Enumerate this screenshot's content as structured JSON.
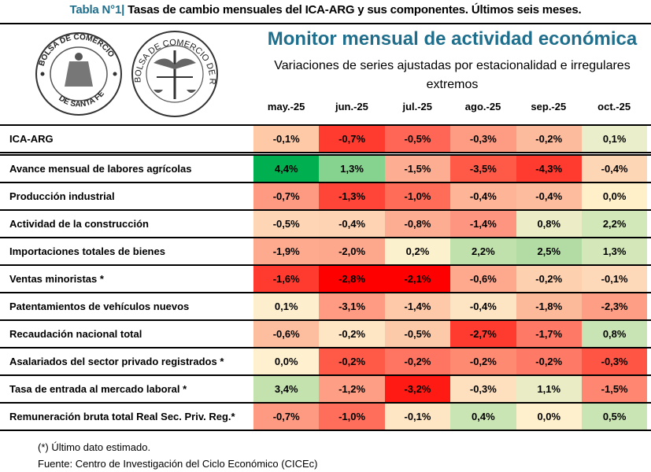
{
  "title": {
    "lead": "Tabla N°1|",
    "text": " Tasas de cambio mensuales del ICA-ARG y sus componentes. Últimos seis meses."
  },
  "header": {
    "monitor_title": "Monitor mensual de actividad económica",
    "subtitle": "Variaciones de series ajustadas por estacionalidad e irregulares extremos",
    "logos": [
      "BOLSA DE COMERCIO DE SANTA FE",
      "BOLSA DE COMERCIO DE ROSARIO"
    ]
  },
  "columns": [
    "may.-25",
    "jun.-25",
    "jul.-25",
    "ago.-25",
    "sep.-25",
    "oct.-25"
  ],
  "rows": [
    {
      "label": "ICA-ARG",
      "values": [
        "-0,1%",
        "-0,7%",
        "-0,5%",
        "-0,3%",
        "-0,2%",
        "0,1%"
      ],
      "colors": [
        "#fdc9a6",
        "#ff3b30",
        "#ff6655",
        "#fe9c83",
        "#fdbb9e",
        "#ebeecb"
      ]
    },
    {
      "label": "Avance mensual de labores agrícolas",
      "values": [
        "4,4%",
        "1,3%",
        "-1,5%",
        "-3,5%",
        "-4,3%",
        "-0,4%"
      ],
      "colors": [
        "#00b050",
        "#86d390",
        "#fdae92",
        "#ff5a48",
        "#ff3a2f",
        "#fdd6b6"
      ]
    },
    {
      "label": "Producción industrial",
      "values": [
        "-0,7%",
        "-1,3%",
        "-1,0%",
        "-0,4%",
        "-0,4%",
        "0,0%"
      ],
      "colors": [
        "#fe9a82",
        "#ff4538",
        "#ff6c58",
        "#feb496",
        "#fdbc9d",
        "#fff0c9"
      ]
    },
    {
      "label": "Actividad de la construcción",
      "values": [
        "-0,5%",
        "-0,4%",
        "-0,8%",
        "-1,4%",
        "0,8%",
        "2,2%"
      ],
      "colors": [
        "#fed5b5",
        "#fdd3b4",
        "#fdad92",
        "#fe9580",
        "#ecedc6",
        "#d2e8b9"
      ]
    },
    {
      "label": "Importaciones totales de bienes",
      "values": [
        "-1,9%",
        "-2,0%",
        "0,2%",
        "2,2%",
        "2,5%",
        "1,3%"
      ],
      "colors": [
        "#fdaa8f",
        "#fda78d",
        "#fcf1cd",
        "#c0e1ab",
        "#b2dca4",
        "#d4e7b9"
      ]
    },
    {
      "label": "Ventas minoristas *",
      "values": [
        "-1,6%",
        "-2,8%",
        "-2,1%",
        "-0,6%",
        "-0,2%",
        "-0,1%"
      ],
      "colors": [
        "#ff3b30",
        "#ff0000",
        "#ff0000",
        "#fea98d",
        "#fdd0af",
        "#fdd8b9"
      ]
    },
    {
      "label": "Patentamientos de vehículos nuevos",
      "values": [
        "0,1%",
        "-3,1%",
        "-1,4%",
        "-0,4%",
        "-1,8%",
        "-2,3%"
      ],
      "colors": [
        "#fdefcd",
        "#fe9b82",
        "#fdc9a8",
        "#fde4c2",
        "#fdba9b",
        "#fe9f85"
      ]
    },
    {
      "label": "Recaudación nacional total",
      "values": [
        "-0,6%",
        "-0,2%",
        "-0,5%",
        "-2,7%",
        "-1,7%",
        "0,8%"
      ],
      "colors": [
        "#fdbd9f",
        "#fee6c4",
        "#fdcaa9",
        "#ff3b30",
        "#ff7a66",
        "#c9e4b4"
      ]
    },
    {
      "label": "Asalariados del sector privado registrados *",
      "values": [
        "0,0%",
        "-0,2%",
        "-0,2%",
        "-0,2%",
        "-0,2%",
        "-0,3%"
      ],
      "colors": [
        "#fff0cf",
        "#ff5a48",
        "#ff7562",
        "#ff8a72",
        "#ff7a66",
        "#ff5545"
      ]
    },
    {
      "label": "Tasa de entrada al mercado laboral *",
      "values": [
        "3,4%",
        "-1,2%",
        "-3,2%",
        "-0,3%",
        "1,1%",
        "-1,5%"
      ],
      "colors": [
        "#c3e2ae",
        "#fe9e85",
        "#ff1a14",
        "#fee0be",
        "#e9ecc5",
        "#ff8670"
      ]
    },
    {
      "label": "Remuneración bruta total Real Sec. Priv. Reg.*",
      "values": [
        "-0,7%",
        "-1,0%",
        "-0,1%",
        "0,4%",
        "0,0%",
        "0,5%"
      ],
      "colors": [
        "#fe9a82",
        "#ff6e5a",
        "#fee5c3",
        "#c9e5b3",
        "#fff0cd",
        "#c9e5b3"
      ]
    }
  ],
  "notes": [
    "(*) Último dato estimado.",
    "Fuente: Centro de Investigación del Ciclo Económico (CICEc)"
  ],
  "accent_color": "#1f6e8c"
}
